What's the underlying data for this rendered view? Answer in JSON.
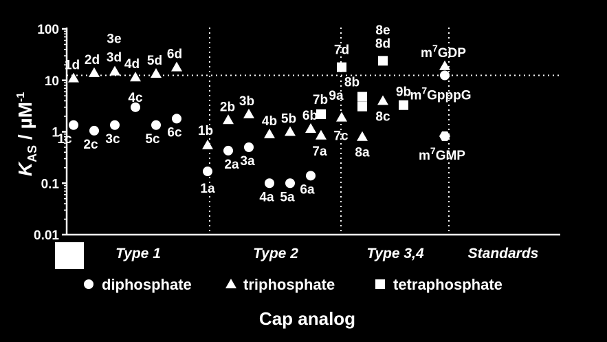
{
  "chart_data": {
    "type": "scatter",
    "title": "",
    "xlabel": "Cap analog",
    "ylabel": {
      "base": "K",
      "sub": "AS",
      "mid": " / µM",
      "sup": "-1"
    },
    "yscale": "log",
    "ylim": [
      0.01,
      100
    ],
    "yticks": [
      {
        "value": 100,
        "label": "100"
      },
      {
        "value": 10,
        "label": "10"
      },
      {
        "value": 1,
        "label": "1"
      },
      {
        "value": 0.1,
        "label": "0.1"
      },
      {
        "value": 0.01,
        "label": "0.01"
      }
    ],
    "xlim": [
      0,
      20
    ],
    "groups": [
      "Type 1",
      "Type 2",
      "Type 3,4",
      "Standards"
    ],
    "group_dividers": [
      6.5,
      12.5,
      17
    ],
    "reference_line_y": 12.5,
    "legend": [
      {
        "marker": "circle",
        "label": "diphosphate"
      },
      {
        "marker": "triangle",
        "label": "triphosphate"
      },
      {
        "marker": "square",
        "label": "tetraphosphate"
      }
    ],
    "points": [
      {
        "label": "1c",
        "x": 1,
        "y": 1.35,
        "marker": "circle",
        "lpos": "below"
      },
      {
        "label": "1d",
        "x": 1,
        "y": 11,
        "marker": "triangle",
        "lpos": "above"
      },
      {
        "label": "2c",
        "x": 2,
        "y": 1.05,
        "marker": "circle",
        "lpos": "below"
      },
      {
        "label": "2d",
        "x": 2,
        "y": 14,
        "marker": "triangle",
        "lpos": "above"
      },
      {
        "label": "3c",
        "x": 3,
        "y": 1.35,
        "marker": "circle",
        "lpos": "below"
      },
      {
        "label": "3d",
        "x": 3,
        "y": 15,
        "marker": "triangle",
        "lpos": "above"
      },
      {
        "label": "3e",
        "x": 3,
        "y": 17,
        "marker": "triangle",
        "lpos": "above2"
      },
      {
        "label": "4c",
        "x": 4,
        "y": 3,
        "marker": "circle",
        "lpos": "below"
      },
      {
        "label": "4d",
        "x": 4,
        "y": 11.5,
        "marker": "triangle",
        "lpos": "above"
      },
      {
        "label": "5c",
        "x": 5,
        "y": 1.35,
        "marker": "circle",
        "lpos": "below"
      },
      {
        "label": "5d",
        "x": 5,
        "y": 13.5,
        "marker": "triangle",
        "lpos": "above"
      },
      {
        "label": "6c",
        "x": 6,
        "y": 1.8,
        "marker": "circle",
        "lpos": "below"
      },
      {
        "label": "6d",
        "x": 6,
        "y": 18,
        "marker": "triangle",
        "lpos": "above"
      },
      {
        "label": "1a",
        "x": 7.5,
        "y": 0.17,
        "marker": "circle",
        "lpos": "below"
      },
      {
        "label": "1b",
        "x": 7.5,
        "y": 0.55,
        "marker": "triangle",
        "lpos": "above"
      },
      {
        "label": "2a",
        "x": 8.5,
        "y": 0.43,
        "marker": "circle",
        "lpos": "below"
      },
      {
        "label": "2b",
        "x": 8.5,
        "y": 1.7,
        "marker": "triangle",
        "lpos": "above"
      },
      {
        "label": "3a",
        "x": 9.5,
        "y": 0.5,
        "marker": "circle",
        "lpos": "below"
      },
      {
        "label": "3b",
        "x": 9.5,
        "y": 2.2,
        "marker": "triangle",
        "lpos": "above"
      },
      {
        "label": "4a",
        "x": 10.5,
        "y": 0.1,
        "marker": "circle",
        "lpos": "below"
      },
      {
        "label": "4b",
        "x": 10.5,
        "y": 0.9,
        "marker": "triangle",
        "lpos": "above"
      },
      {
        "label": "5a",
        "x": 11.5,
        "y": 0.1,
        "marker": "circle",
        "lpos": "below"
      },
      {
        "label": "5b",
        "x": 11.5,
        "y": 1.0,
        "marker": "triangle",
        "lpos": "above"
      },
      {
        "label": "6a",
        "x": 12.5,
        "y": 0.14,
        "marker": "circle",
        "lpos": "below"
      },
      {
        "label": "6b",
        "x": 12.5,
        "y": 1.15,
        "marker": "triangle",
        "lpos": "above"
      },
      {
        "label": "7a",
        "x": 13,
        "y": 0.85,
        "marker": "triangle",
        "lpos": "below"
      },
      {
        "label": "7b",
        "x": 13,
        "y": 2.2,
        "marker": "square",
        "lpos": "above"
      },
      {
        "label": "7c",
        "x": 14,
        "y": 1.9,
        "marker": "triangle",
        "lpos": "below"
      },
      {
        "label": "7d",
        "x": 14,
        "y": 18,
        "marker": "square",
        "lpos": "above"
      },
      {
        "label": "8a",
        "x": 15,
        "y": 0.8,
        "marker": "triangle",
        "lpos": "below"
      },
      {
        "label": "8b",
        "x": 15,
        "y": 4.8,
        "marker": "square",
        "lpos": "above"
      },
      {
        "label": "9a",
        "x": 15,
        "y": 3.1,
        "marker": "square",
        "lpos": "none"
      },
      {
        "label": "8c",
        "x": 16,
        "y": 4.0,
        "marker": "triangle",
        "lpos": "below"
      },
      {
        "label": "8d",
        "x": 16,
        "y": 24,
        "marker": "square",
        "lpos": "above"
      },
      {
        "label": "8e",
        "x": 16,
        "y": 22,
        "marker": "square",
        "lpos": "above2"
      },
      {
        "label": "9b",
        "x": 17,
        "y": 3.3,
        "marker": "square",
        "lpos": "above"
      },
      {
        "label": "m7GDP",
        "x": 19,
        "y": 19,
        "marker": "triangle",
        "lpos": "above"
      },
      {
        "label": "m7GpppG",
        "x": 19,
        "y": 12.5,
        "marker": "circle",
        "lpos": "below"
      },
      {
        "label": "m7GMP",
        "x": 19,
        "y": 0.82,
        "marker": "hexagon",
        "lpos": "below"
      }
    ]
  }
}
